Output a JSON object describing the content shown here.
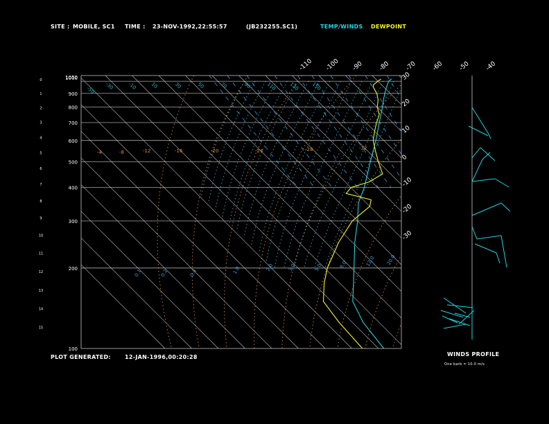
{
  "header": {
    "site_label": "SITE :",
    "site_value": "MOBILE, SC1",
    "time_label": "TIME :",
    "time_value": "23-NOV-1992,22:55:57",
    "file_value": "(JB232255.SC1)",
    "temp_winds_label": "TEMP/WINDS",
    "dewpoint_label": "DEWPOINT"
  },
  "footer": {
    "generated_label": "PLOT GENERATED:",
    "generated_value": "12-JAN-1996,00:20:28"
  },
  "winds_panel": {
    "title": "WINDS PROFILE",
    "note": "One barb = 10.0 m/s"
  },
  "colors": {
    "temp": "#22d3e0",
    "dewpoint": "#f3f52a",
    "isotherm": "#c8c8c8",
    "isobar": "#c8c8c8",
    "dry_adiabat": "#e08a3a",
    "moist_adiabat": "#2fb8cf",
    "mixing_ratio": "#3a9be0"
  },
  "chart_data": {
    "type": "line",
    "chart_kind": "skew-T log-p",
    "pressure_ticks": [
      "100",
      "200",
      "300",
      "400",
      "500",
      "600",
      "700",
      "800",
      "900",
      "1000",
      "1050"
    ],
    "pressure_values": [
      100,
      200,
      300,
      400,
      500,
      600,
      700,
      800,
      900,
      1000,
      1050
    ],
    "height_ticks": [
      "0",
      "1",
      "2",
      "3",
      "4",
      "5",
      "6",
      "7",
      "8",
      "9",
      "10",
      "11",
      "12",
      "13",
      "14",
      "15"
    ],
    "top_temp_ticks": [
      "-110",
      "-100",
      "-90",
      "-80",
      "-70",
      "-60",
      "-50",
      "-40"
    ],
    "right_temp_ticks": [
      "-30",
      "-20",
      "-10",
      "0",
      "10",
      "20",
      "30"
    ],
    "dry_adiabat_labels": [
      "-50",
      "-30",
      "-10",
      "10",
      "30",
      "50",
      "70",
      "90",
      "110",
      "130",
      "150"
    ],
    "mixing_ratio_labels": [
      "0.1",
      "0.2",
      "0.4",
      "1.0",
      "2.0",
      "3.0",
      "5.0",
      "8.0",
      "12.0",
      "20.0"
    ],
    "theta_e_labels": [
      "-4",
      "-8",
      "-12",
      "-16",
      "-20",
      "-24",
      "-28",
      "-32"
    ],
    "series": [
      {
        "name": "TEMP/WINDS",
        "points": [
          [
            1020,
            26
          ],
          [
            1000,
            24
          ],
          [
            950,
            21
          ],
          [
            900,
            18
          ],
          [
            850,
            15
          ],
          [
            800,
            12
          ],
          [
            700,
            5
          ],
          [
            600,
            -3
          ],
          [
            500,
            -13
          ],
          [
            400,
            -25
          ],
          [
            350,
            -33
          ],
          [
            300,
            -40
          ],
          [
            250,
            -49
          ],
          [
            200,
            -59
          ],
          [
            175,
            -65
          ],
          [
            150,
            -72
          ],
          [
            125,
            -76
          ],
          [
            100,
            -78
          ]
        ]
      },
      {
        "name": "DEWPOINT",
        "points": [
          [
            1020,
            22
          ],
          [
            1000,
            20
          ],
          [
            970,
            17
          ],
          [
            950,
            16
          ],
          [
            900,
            15
          ],
          [
            850,
            13
          ],
          [
            800,
            10
          ],
          [
            750,
            8
          ],
          [
            700,
            4
          ],
          [
            650,
            0
          ],
          [
            600,
            -4
          ],
          [
            550,
            -7
          ],
          [
            500,
            -10
          ],
          [
            450,
            -13
          ],
          [
            420,
            -21
          ],
          [
            400,
            -30
          ],
          [
            380,
            -34
          ],
          [
            360,
            -27
          ],
          [
            340,
            -30
          ],
          [
            300,
            -42
          ],
          [
            250,
            -55
          ],
          [
            200,
            -69
          ],
          [
            175,
            -76
          ],
          [
            150,
            -83
          ],
          [
            125,
            -85
          ],
          [
            100,
            -86
          ]
        ]
      }
    ]
  }
}
